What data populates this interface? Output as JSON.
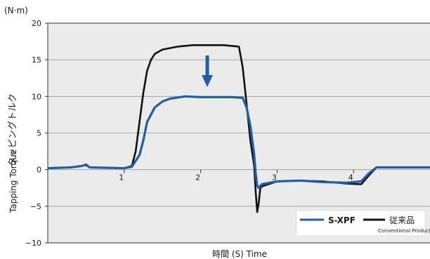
{
  "chart_data": {
    "type": "line",
    "unit_label": "(N·m)",
    "xlabel": "時間 (S) Time",
    "ylabel_jp": "タッピングトルク",
    "ylabel_en": "Tapping Torque",
    "xlim": [
      0,
      5
    ],
    "ylim": [
      -10,
      20
    ],
    "x_ticks": [
      "1",
      "2",
      "3",
      "4"
    ],
    "y_ticks": [
      "20",
      "15",
      "10",
      "5",
      "0",
      "−5",
      "−10"
    ],
    "y_tick_values": [
      20,
      15,
      10,
      5,
      0,
      -5,
      -10
    ],
    "x_tick_values": [
      1,
      2,
      3,
      4
    ],
    "grid": "horizontal",
    "legend_position": "bottom-right",
    "series": [
      {
        "name": "S-XPF",
        "color": "#1f5fa8",
        "x": [
          0,
          0.3,
          0.45,
          0.5,
          0.55,
          1.0,
          1.1,
          1.2,
          1.25,
          1.3,
          1.4,
          1.5,
          1.6,
          1.8,
          2.0,
          2.2,
          2.4,
          2.55,
          2.6,
          2.65,
          2.7,
          2.72,
          2.74,
          2.76,
          2.78,
          2.8,
          3.0,
          3.3,
          3.6,
          3.9,
          4.1,
          4.2,
          4.3,
          4.5,
          4.8,
          5.0
        ],
        "y": [
          0.2,
          0.3,
          0.5,
          0.7,
          0.3,
          0.2,
          0.4,
          2.0,
          4.0,
          6.5,
          8.5,
          9.3,
          9.7,
          10.0,
          9.9,
          9.9,
          9.9,
          9.8,
          8.5,
          6.0,
          2.0,
          -0.5,
          -2.2,
          -2.5,
          -2.2,
          -2.0,
          -1.6,
          -1.5,
          -1.7,
          -1.8,
          -1.6,
          -0.5,
          0.3,
          0.3,
          0.3,
          0.3
        ]
      },
      {
        "name": "従来品",
        "sub_label": "Conventional Product",
        "color": "#111111",
        "x": [
          0,
          0.3,
          0.5,
          0.55,
          1.0,
          1.1,
          1.15,
          1.2,
          1.25,
          1.3,
          1.35,
          1.4,
          1.5,
          1.7,
          1.9,
          2.1,
          2.3,
          2.5,
          2.55,
          2.6,
          2.65,
          2.7,
          2.72,
          2.74,
          2.76,
          2.78,
          2.8,
          3.0,
          3.3,
          3.6,
          3.9,
          4.1,
          4.2,
          4.3,
          4.5,
          4.8,
          5.0
        ],
        "y": [
          0.2,
          0.3,
          0.6,
          0.3,
          0.2,
          0.5,
          2.5,
          6.5,
          10.5,
          13.5,
          15.0,
          15.8,
          16.4,
          16.8,
          17.0,
          17.0,
          17.0,
          16.8,
          14.0,
          9.0,
          4.0,
          0.5,
          -3.0,
          -5.8,
          -4.5,
          -2.5,
          -2.3,
          -1.6,
          -1.5,
          -1.6,
          -1.9,
          -2.0,
          -0.8,
          0.3,
          0.3,
          0.3,
          0.3
        ]
      }
    ]
  },
  "colors": {
    "plot_background": "#ebebeb",
    "grid": "#999999",
    "arrow": "#1f5fa8"
  }
}
